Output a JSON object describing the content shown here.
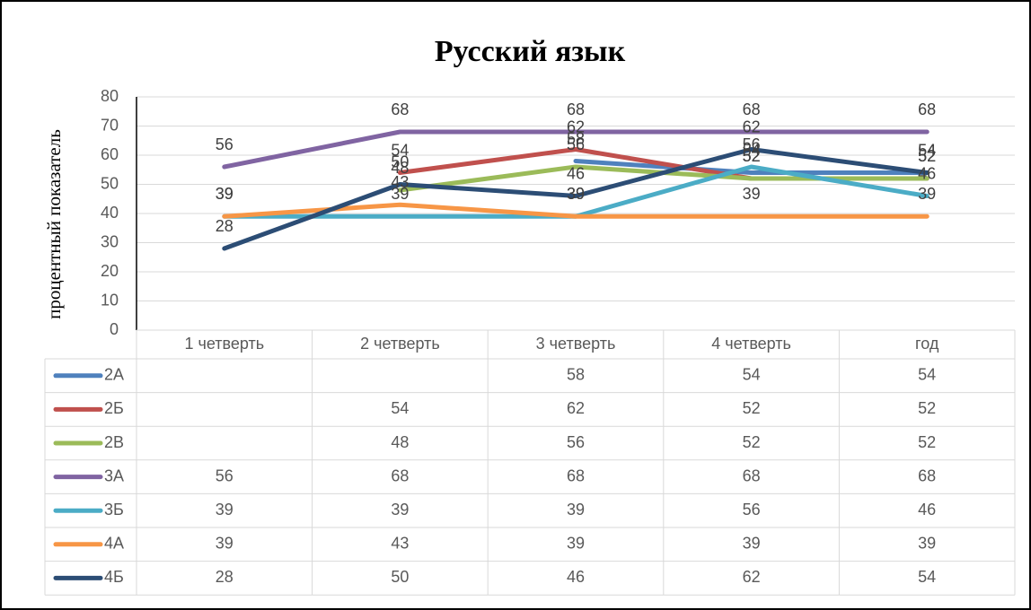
{
  "chart_data": {
    "type": "line",
    "title": "Русский язык",
    "y_label": "процентный показатель",
    "categories": [
      "1 четверть",
      "2 четверть",
      "3 четверть",
      "4 четверть",
      "год"
    ],
    "series": [
      {
        "name": "2А",
        "color": "#4f81bd",
        "values": [
          null,
          null,
          58,
          54,
          54
        ]
      },
      {
        "name": "2Б",
        "color": "#c0504d",
        "values": [
          null,
          54,
          62,
          52,
          52
        ]
      },
      {
        "name": "2В",
        "color": "#9bbb59",
        "values": [
          null,
          48,
          56,
          52,
          52
        ]
      },
      {
        "name": "3А",
        "color": "#8064a2",
        "values": [
          56,
          68,
          68,
          68,
          68
        ]
      },
      {
        "name": "3Б",
        "color": "#4bacc6",
        "values": [
          39,
          39,
          39,
          56,
          46
        ]
      },
      {
        "name": "4А",
        "color": "#f79646",
        "values": [
          39,
          43,
          39,
          39,
          39
        ]
      },
      {
        "name": "4Б",
        "color": "#2c4d75",
        "values": [
          28,
          50,
          46,
          62,
          54
        ]
      }
    ],
    "ylim": [
      0,
      80
    ],
    "yticks": [
      0,
      10,
      20,
      30,
      40,
      50,
      60,
      70,
      80
    ],
    "grid": true,
    "data_table": true,
    "data_labels": true
  }
}
